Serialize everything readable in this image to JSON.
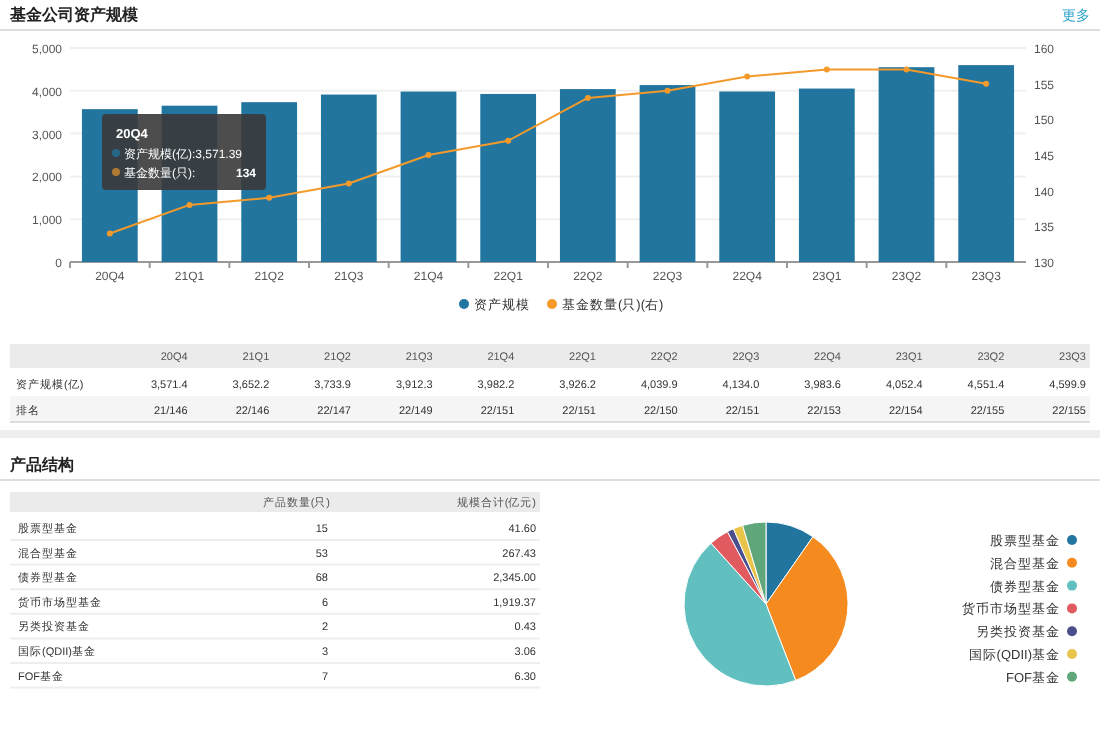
{
  "chart_data": [
    {
      "type": "bar",
      "title": "基金公司资产规模",
      "categories": [
        "20Q4",
        "21Q1",
        "21Q2",
        "21Q3",
        "21Q4",
        "22Q1",
        "22Q2",
        "22Q3",
        "22Q4",
        "23Q1",
        "23Q2",
        "23Q3"
      ],
      "series": [
        {
          "name": "资产规模",
          "type": "bar",
          "color": "#21759f",
          "values": [
            3571.4,
            3652.2,
            3733.9,
            3912.3,
            3982.2,
            3926.2,
            4039.9,
            4134.0,
            3983.6,
            4052.4,
            4551.4,
            4599.9
          ]
        },
        {
          "name": "基金数量(只)(右)",
          "type": "line",
          "axis": "y2",
          "color": "#f39a2b",
          "values": [
            134,
            138,
            139,
            141,
            145,
            147,
            153,
            154,
            156,
            157,
            157,
            155
          ]
        }
      ],
      "ylim": [
        0,
        5000
      ],
      "yticks": [
        {
          "value": 0,
          "label": "0"
        },
        {
          "value": 1000,
          "label": "1,000"
        },
        {
          "value": 2000,
          "label": "2,000"
        },
        {
          "value": 3000,
          "label": "3,000"
        },
        {
          "value": 4000,
          "label": "4,000"
        },
        {
          "value": 5000,
          "label": "5,000"
        }
      ],
      "y2lim": [
        130,
        160
      ],
      "y2ticks": [
        130,
        135,
        140,
        145,
        150,
        155,
        160
      ],
      "grid": "y",
      "legend": "bottom",
      "marker": "circle",
      "annotations": [
        "更多",
        "20Q4",
        "资产规模(亿):3,571.39",
        "基金数量(只):",
        "134",
        "资产规模(亿)",
        "排名",
        "3,571.4",
        "3,652.2",
        "3,733.9",
        "3,912.3",
        "3,982.2",
        "3,926.2",
        "4,039.9",
        "4,134.0",
        "3,983.6",
        "4,052.4",
        "4,551.4",
        "4,599.9",
        "21/146",
        "22/146",
        "22/147",
        "22/149",
        "22/151",
        "22/151",
        "22/150",
        "22/151",
        "22/153",
        "22/154",
        "22/155",
        "22/155"
      ]
    },
    {
      "type": "other",
      "title": "产品结构",
      "annotations": [
        "产品数量(只)",
        "规模合计(亿元)",
        "股票型基金",
        "15",
        "41.60",
        "混合型基金",
        "53",
        "267.43",
        "债券型基金",
        "68",
        "2,345.00",
        "货币市场型基金",
        "6",
        "1,919.37",
        "另类投资基金",
        "2",
        "0.43",
        "国际(QDII)基金",
        "3",
        "3.06",
        "FOF基金",
        "7",
        "6.30"
      ]
    },
    {
      "type": "pie",
      "categories": [
        "股票型基金",
        "混合型基金",
        "债券型基金",
        "货币市场型基金",
        "另类投资基金",
        "国际(QDII)基金",
        "FOF基金"
      ],
      "values": [
        9.7,
        34.4,
        44.2,
        3.9,
        1.3,
        1.9,
        4.6
      ],
      "colors": [
        "#21759f",
        "#f58a1f",
        "#62bfbf",
        "#e05a5f",
        "#4a4e8c",
        "#e8c44a",
        "#5fa77a"
      ],
      "legend": "right"
    }
  ]
}
